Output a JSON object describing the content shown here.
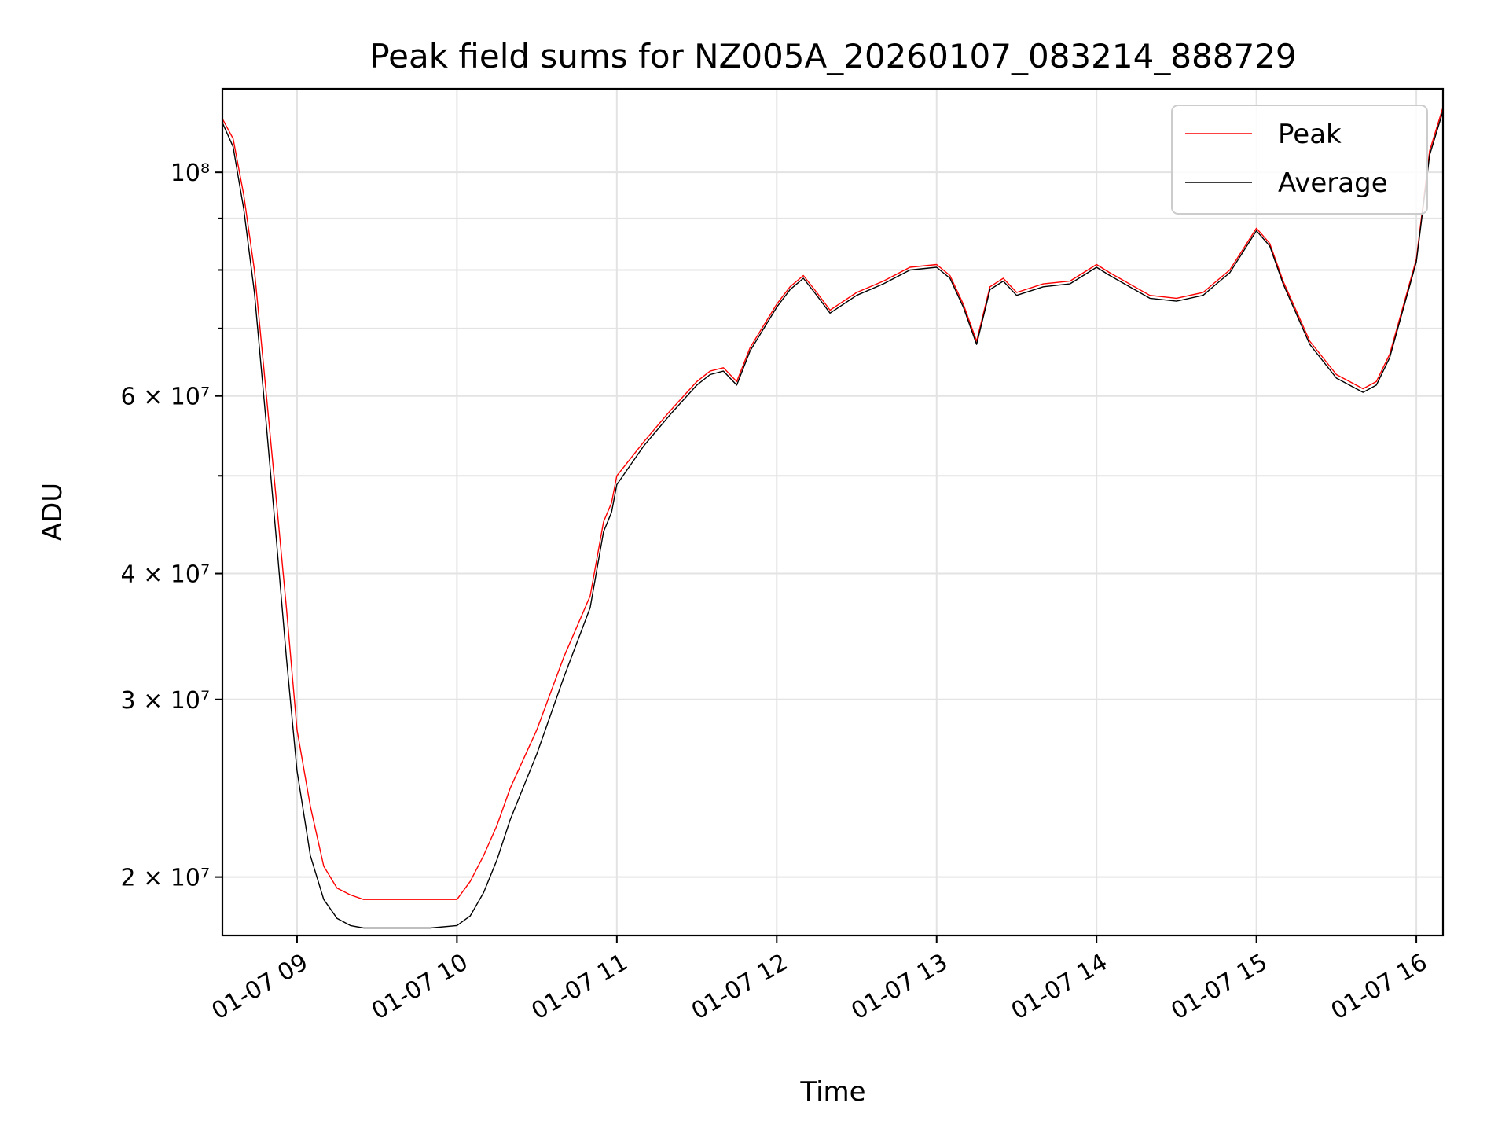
{
  "chart_data": {
    "type": "line",
    "title": "Peak field sums for NZ005A_20260107_083214_888729",
    "xlabel": "Time",
    "ylabel": "ADU",
    "yscale": "log",
    "grid": true,
    "legend": "top-right",
    "xlim": [
      "2026-01-07 08:32",
      "2026-01-07 16:10"
    ],
    "ylim": [
      17500000,
      121000000
    ],
    "x_ticks": [
      {
        "label": "01-07 09",
        "value": "2026-01-07 09:00"
      },
      {
        "label": "01-07 10",
        "value": "2026-01-07 10:00"
      },
      {
        "label": "01-07 11",
        "value": "2026-01-07 11:00"
      },
      {
        "label": "01-07 12",
        "value": "2026-01-07 12:00"
      },
      {
        "label": "01-07 13",
        "value": "2026-01-07 13:00"
      },
      {
        "label": "01-07 14",
        "value": "2026-01-07 14:00"
      },
      {
        "label": "01-07 15",
        "value": "2026-01-07 15:00"
      },
      {
        "label": "01-07 16",
        "value": "2026-01-07 16:00"
      }
    ],
    "y_major_ticks": [
      {
        "label": "2 × 10⁷",
        "value": 20000000
      },
      {
        "label": "3 × 10⁷",
        "value": 30000000
      },
      {
        "label": "4 × 10⁷",
        "value": 40000000
      },
      {
        "label": "6 × 10⁷",
        "value": 60000000
      },
      {
        "label": "10⁸",
        "value": 100000000
      }
    ],
    "y_minor_ticks": [
      50000000,
      70000000,
      80000000,
      90000000
    ],
    "series": [
      {
        "name": "Peak",
        "color": "#ff0000",
        "x": [
          "08:32",
          "08:36",
          "08:40",
          "08:44",
          "08:48",
          "08:52",
          "08:56",
          "09:00",
          "09:05",
          "09:10",
          "09:15",
          "09:20",
          "09:25",
          "09:30",
          "09:40",
          "09:50",
          "10:00",
          "10:05",
          "10:10",
          "10:15",
          "10:20",
          "10:30",
          "10:40",
          "10:50",
          "10:55",
          "10:58",
          "11:00",
          "11:10",
          "11:20",
          "11:30",
          "11:35",
          "11:40",
          "11:45",
          "11:50",
          "12:00",
          "12:05",
          "12:10",
          "12:15",
          "12:20",
          "12:30",
          "12:40",
          "12:50",
          "13:00",
          "13:05",
          "13:10",
          "13:15",
          "13:20",
          "13:25",
          "13:30",
          "13:40",
          "13:50",
          "14:00",
          "14:05",
          "14:20",
          "14:30",
          "14:40",
          "14:45",
          "14:50",
          "15:00",
          "15:05",
          "15:10",
          "15:20",
          "15:30",
          "15:40",
          "15:45",
          "15:50",
          "16:00",
          "16:05",
          "16:10"
        ],
        "values": [
          113000000,
          108000000,
          95000000,
          80000000,
          62000000,
          48000000,
          37000000,
          28000000,
          23500000,
          20500000,
          19500000,
          19200000,
          19000000,
          19000000,
          19000000,
          19000000,
          19000000,
          19800000,
          21000000,
          22500000,
          24500000,
          28000000,
          33000000,
          38000000,
          45000000,
          47000000,
          50000000,
          54000000,
          58000000,
          62000000,
          63500000,
          64000000,
          62000000,
          67000000,
          74000000,
          77000000,
          79000000,
          76000000,
          73000000,
          76000000,
          78000000,
          80500000,
          81000000,
          79000000,
          74000000,
          68000000,
          77000000,
          78500000,
          76000000,
          77500000,
          78000000,
          81000000,
          79500000,
          75500000,
          75000000,
          76000000,
          78000000,
          80000000,
          88000000,
          85000000,
          78000000,
          68000000,
          63000000,
          61000000,
          62000000,
          66000000,
          82000000,
          105000000,
          116000000
        ]
      },
      {
        "name": "Average",
        "color": "#000000",
        "x": [
          "08:32",
          "08:36",
          "08:40",
          "08:44",
          "08:48",
          "08:52",
          "08:56",
          "09:00",
          "09:05",
          "09:10",
          "09:15",
          "09:20",
          "09:25",
          "09:30",
          "09:40",
          "09:50",
          "10:00",
          "10:05",
          "10:10",
          "10:15",
          "10:20",
          "10:30",
          "10:40",
          "10:50",
          "10:55",
          "10:58",
          "11:00",
          "11:10",
          "11:20",
          "11:30",
          "11:35",
          "11:40",
          "11:45",
          "11:50",
          "12:00",
          "12:05",
          "12:10",
          "12:15",
          "12:20",
          "12:30",
          "12:40",
          "12:50",
          "13:00",
          "13:05",
          "13:10",
          "13:15",
          "13:20",
          "13:25",
          "13:30",
          "13:40",
          "13:50",
          "14:00",
          "14:05",
          "14:20",
          "14:30",
          "14:40",
          "14:45",
          "14:50",
          "15:00",
          "15:05",
          "15:10",
          "15:20",
          "15:30",
          "15:40",
          "15:45",
          "15:50",
          "16:00",
          "16:05",
          "16:10"
        ],
        "values": [
          112000000,
          106000000,
          92000000,
          76000000,
          58000000,
          44000000,
          33000000,
          25500000,
          21000000,
          19000000,
          18200000,
          17900000,
          17800000,
          17800000,
          17800000,
          17800000,
          17900000,
          18300000,
          19300000,
          20800000,
          22800000,
          26500000,
          31500000,
          37000000,
          44000000,
          46000000,
          49000000,
          53500000,
          57500000,
          61500000,
          63000000,
          63500000,
          61500000,
          66500000,
          73500000,
          76500000,
          78500000,
          75500000,
          72500000,
          75500000,
          77500000,
          80000000,
          80500000,
          78500000,
          73500000,
          67500000,
          76500000,
          78000000,
          75500000,
          77000000,
          77500000,
          80500000,
          79000000,
          75000000,
          74500000,
          75500000,
          77500000,
          79500000,
          87500000,
          84500000,
          77500000,
          67500000,
          62500000,
          60500000,
          61500000,
          65500000,
          81500000,
          104000000,
          115000000
        ]
      }
    ]
  }
}
